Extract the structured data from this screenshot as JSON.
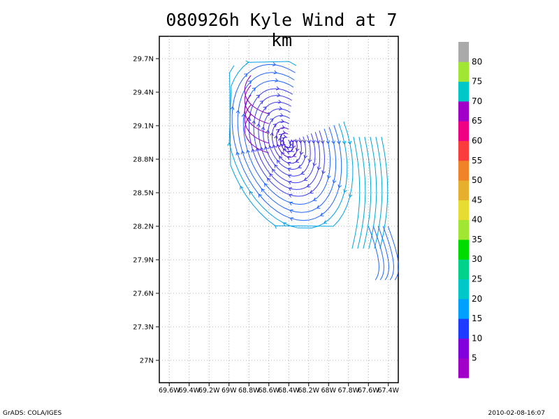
{
  "chart_data": {
    "type": "streamline",
    "title": "080926h Kyle Wind at 7 km",
    "xlim": [
      -69.7,
      -67.3
    ],
    "ylim": [
      26.8,
      29.9
    ],
    "x_ticks": [
      -69.6,
      -69.4,
      -69.2,
      -69.0,
      -68.8,
      -68.6,
      -68.4,
      -68.2,
      -68.0,
      -67.8,
      -67.6,
      -67.4
    ],
    "x_tick_labels": [
      "69.6W",
      "69.4W",
      "69.2W",
      "69W",
      "68.8W",
      "68.6W",
      "68.4W",
      "68.2W",
      "68W",
      "67.8W",
      "67.6W",
      "67.4W"
    ],
    "y_ticks": [
      27.0,
      27.3,
      27.6,
      27.9,
      28.2,
      28.5,
      28.8,
      29.1,
      29.4,
      29.7
    ],
    "y_tick_labels": [
      "27N",
      "27.3N",
      "27.6N",
      "27.9N",
      "28.2N",
      "28.5N",
      "28.8N",
      "29.1N",
      "29.4N",
      "29.7N"
    ],
    "grid": true,
    "circulation_center": {
      "lon": -68.42,
      "lat": 28.95
    },
    "colorbar": {
      "labels": [
        "5",
        "10",
        "15",
        "20",
        "25",
        "30",
        "35",
        "40",
        "45",
        "50",
        "55",
        "60",
        "65",
        "70",
        "75",
        "80"
      ],
      "colors": [
        "#a000c8",
        "#8200dc",
        "#1e3cff",
        "#00a0ff",
        "#00c8c8",
        "#00d28c",
        "#00dc00",
        "#a0e632",
        "#e6dc32",
        "#e6af2d",
        "#f08228",
        "#fa3c3c",
        "#f00082",
        "#a000c8",
        "#00c8c8",
        "#a0e632",
        "#aaaaaa"
      ]
    }
  },
  "footer": {
    "left": "GrADS: COLA/IGES",
    "right": "2010-02-08-16:07"
  }
}
